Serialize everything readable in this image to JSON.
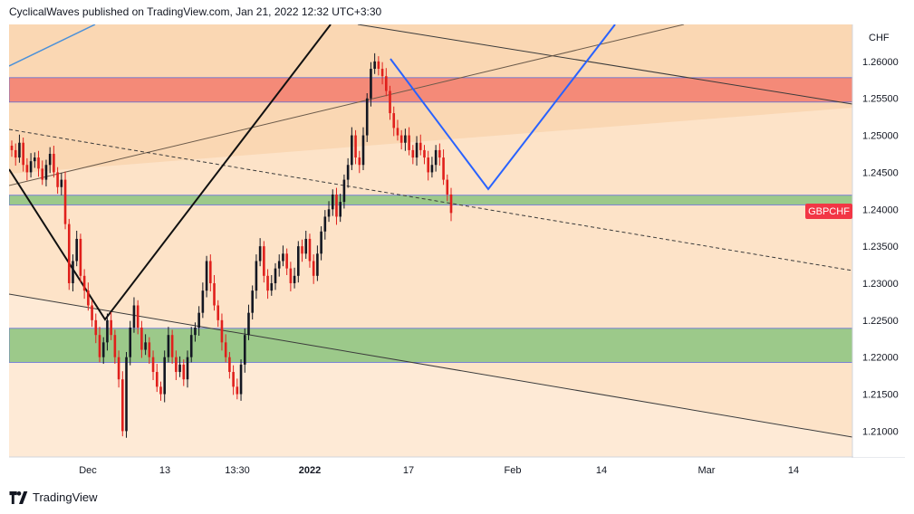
{
  "header": {
    "text": "CyclicalWaves published on TradingView.com, Jan 21, 2022 12:32 UTC+3:30"
  },
  "footer": {
    "brand": "TradingView",
    "logo_icon": "tradingview-logo-icon"
  },
  "colors": {
    "background": "#fde3c8",
    "resistance_zone": "#f48a78",
    "support_zone": "#9cc98a",
    "candle_up": "#131722",
    "candle_down": "#e0201c",
    "projection": "#2962ff",
    "price_badge": "#f23645"
  },
  "chart_data": {
    "type": "candlestick",
    "symbol": "GBPCHF",
    "currency": "CHF",
    "y_ticks": [
      "1.26000",
      "1.25500",
      "1.25000",
      "1.24500",
      "1.24000",
      "1.23500",
      "1.23000",
      "1.22500",
      "1.22000",
      "1.21500",
      "1.21000"
    ],
    "ylim": [
      1.2065,
      1.265
    ],
    "x_ticks": [
      {
        "label": "Dec",
        "bold": false
      },
      {
        "label": "13",
        "bold": false
      },
      {
        "label": "13:30",
        "bold": false
      },
      {
        "label": "2022",
        "bold": true
      },
      {
        "label": "17",
        "bold": false
      },
      {
        "label": "Feb",
        "bold": false
      },
      {
        "label": "14",
        "bold": false
      },
      {
        "label": "Mar",
        "bold": false
      },
      {
        "label": "14",
        "bold": false
      }
    ],
    "last_price_label": "GBPCHF",
    "zones": [
      {
        "name": "resistance",
        "from": 1.2545,
        "to": 1.2578
      },
      {
        "name": "support-upper",
        "from": 1.2406,
        "to": 1.2419
      },
      {
        "name": "support-lower",
        "from": 1.2193,
        "to": 1.2239
      }
    ],
    "closes": [
      1.248,
      1.247,
      1.249,
      1.246,
      1.245,
      1.2465,
      1.247,
      1.2455,
      1.244,
      1.246,
      1.2475,
      1.245,
      1.243,
      1.244,
      1.238,
      1.23,
      1.233,
      1.236,
      1.231,
      1.229,
      1.227,
      1.225,
      1.223,
      1.22,
      1.222,
      1.225,
      1.223,
      1.22,
      1.217,
      1.21,
      1.22,
      1.224,
      1.227,
      1.224,
      1.221,
      1.222,
      1.22,
      1.218,
      1.216,
      1.215,
      1.22,
      1.223,
      1.22,
      1.218,
      1.219,
      1.217,
      1.22,
      1.223,
      1.224,
      1.226,
      1.229,
      1.233,
      1.23,
      1.227,
      1.225,
      1.222,
      1.22,
      1.218,
      1.216,
      1.215,
      1.219,
      1.223,
      1.226,
      1.229,
      1.233,
      1.235,
      1.231,
      1.229,
      1.23,
      1.232,
      1.233,
      1.234,
      1.232,
      1.23,
      1.231,
      1.235,
      1.234,
      1.236,
      1.233,
      1.231,
      1.234,
      1.237,
      1.239,
      1.24,
      1.242,
      1.239,
      1.241,
      1.244,
      1.246,
      1.25,
      1.247,
      1.246,
      1.25,
      1.255,
      1.259,
      1.26,
      1.259,
      1.258,
      1.256,
      1.253,
      1.251,
      1.25,
      1.249,
      1.25,
      1.248,
      1.247,
      1.249,
      1.248,
      1.247,
      1.245,
      1.246,
      1.248,
      1.247,
      1.244,
      1.242,
      1.2395
    ]
  }
}
